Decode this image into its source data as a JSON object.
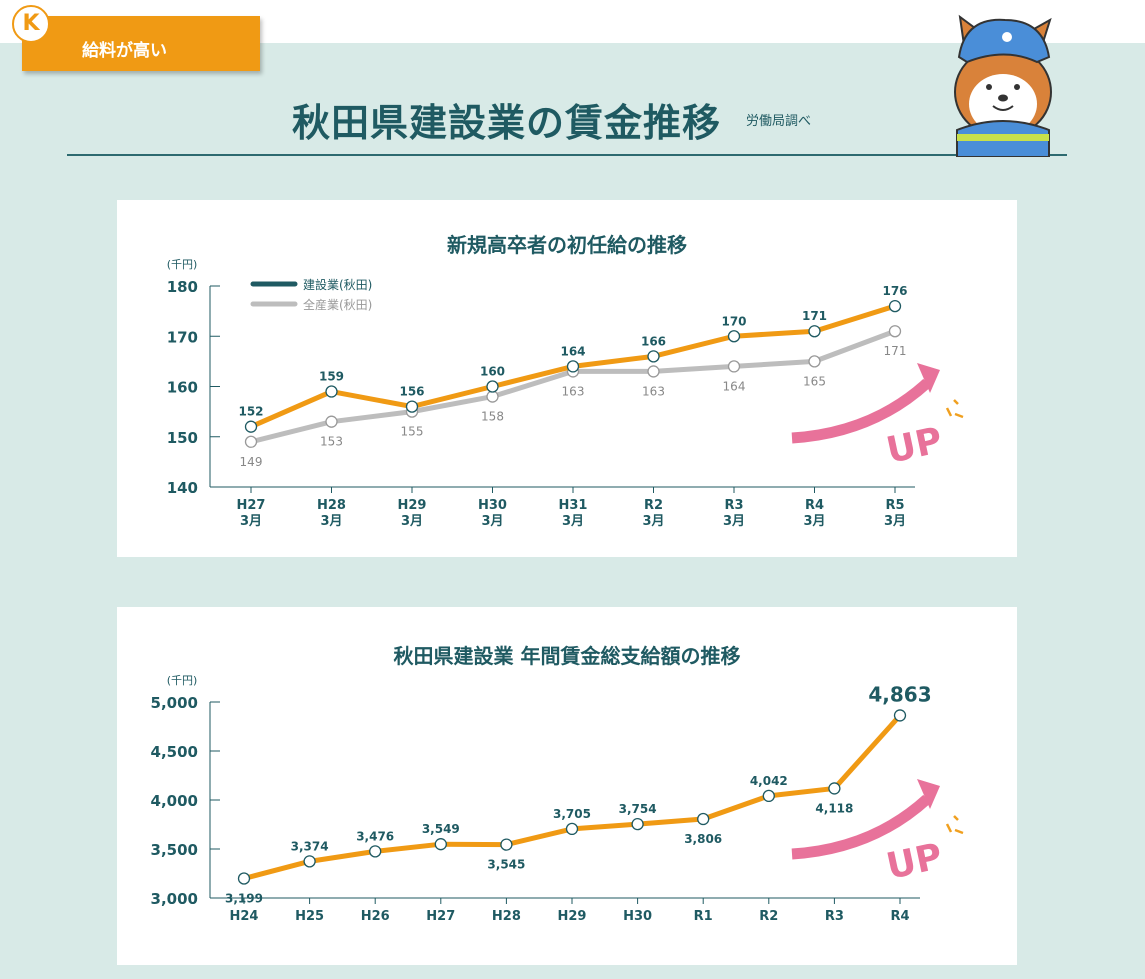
{
  "header": {
    "badge": "K",
    "tag": "給料が高い",
    "title": "秋田県建設業の賃金推移",
    "source": "労働局調べ"
  },
  "colors": {
    "background": "#d8eae7",
    "teal": "#1f5a62",
    "orange": "#f09a14",
    "gray": "#bdbdbd",
    "pink": "#e8729a"
  },
  "chart_data": [
    {
      "type": "line",
      "title": "新規高卒者の初任給の推移",
      "ylabel": "(千円)",
      "ylim": [
        140,
        180
      ],
      "yticks": [
        140,
        150,
        160,
        170,
        180
      ],
      "categories": [
        "H27\n3月",
        "H28\n3月",
        "H29\n3月",
        "H30\n3月",
        "H31\n3月",
        "R2\n3月",
        "R3\n3月",
        "R4\n3月",
        "R5\n3月"
      ],
      "series": [
        {
          "name": "建設業(秋田)",
          "values": [
            152,
            159,
            156,
            160,
            164,
            166,
            170,
            171,
            176
          ]
        },
        {
          "name": "全産業(秋田)",
          "values": [
            149,
            153,
            155,
            158,
            163,
            163,
            164,
            165,
            171
          ]
        }
      ],
      "legend": "top-left",
      "annotation": "UP"
    },
    {
      "type": "line",
      "title": "秋田県建設業 年間賃金総支給額の推移",
      "ylabel": "(千円)",
      "ylim": [
        3000,
        5000
      ],
      "yticks": [
        3000,
        3500,
        4000,
        4500,
        5000
      ],
      "categories": [
        "H24",
        "H25",
        "H26",
        "H27",
        "H28",
        "H29",
        "H30",
        "R1",
        "R2",
        "R3",
        "R4"
      ],
      "series": [
        {
          "values": [
            3199,
            3374,
            3476,
            3549,
            3545,
            3705,
            3754,
            3806,
            4042,
            4118,
            4863
          ]
        }
      ],
      "annotation": "UP"
    }
  ]
}
